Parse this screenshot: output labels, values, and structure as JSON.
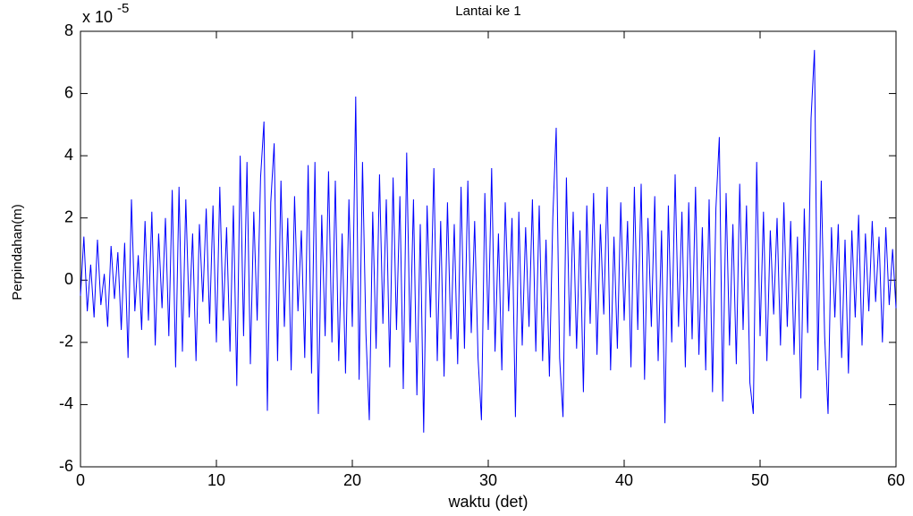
{
  "chart_data": {
    "type": "line",
    "title": "Lantai ke 1",
    "x_label": "waktu (det)",
    "y_label": "Perpindahan(m)",
    "y_multiplier": "x 10",
    "y_exponent": "-5",
    "x": [
      0,
      0.25,
      0.5,
      0.75,
      1,
      1.25,
      1.5,
      1.75,
      2,
      2.25,
      2.5,
      2.75,
      3,
      3.25,
      3.5,
      3.75,
      4,
      4.25,
      4.5,
      4.75,
      5,
      5.25,
      5.5,
      5.75,
      6,
      6.25,
      6.5,
      6.75,
      7,
      7.25,
      7.5,
      7.75,
      8,
      8.25,
      8.5,
      8.75,
      9,
      9.25,
      9.5,
      9.75,
      10,
      10.25,
      10.5,
      10.75,
      11,
      11.25,
      11.5,
      11.75,
      12,
      12.25,
      12.5,
      12.75,
      13,
      13.25,
      13.5,
      13.75,
      14,
      14.25,
      14.5,
      14.75,
      15,
      15.25,
      15.5,
      15.75,
      16,
      16.25,
      16.5,
      16.75,
      17,
      17.25,
      17.5,
      17.75,
      18,
      18.25,
      18.5,
      18.75,
      19,
      19.25,
      19.5,
      19.75,
      20,
      20.25,
      20.5,
      20.75,
      21,
      21.25,
      21.5,
      21.75,
      22,
      22.25,
      22.5,
      22.75,
      23,
      23.25,
      23.5,
      23.75,
      24,
      24.25,
      24.5,
      24.75,
      25,
      25.25,
      25.5,
      25.75,
      26,
      26.25,
      26.5,
      26.75,
      27,
      27.25,
      27.5,
      27.75,
      28,
      28.25,
      28.5,
      28.75,
      29,
      29.25,
      29.5,
      29.75,
      30,
      30.25,
      30.5,
      30.75,
      31,
      31.25,
      31.5,
      31.75,
      32,
      32.25,
      32.5,
      32.75,
      33,
      33.25,
      33.5,
      33.75,
      34,
      34.25,
      34.5,
      34.75,
      35,
      35.25,
      35.5,
      35.75,
      36,
      36.25,
      36.5,
      36.75,
      37,
      37.25,
      37.5,
      37.75,
      38,
      38.25,
      38.5,
      38.75,
      39,
      39.25,
      39.5,
      39.75,
      40,
      40.25,
      40.5,
      40.75,
      41,
      41.25,
      41.5,
      41.75,
      42,
      42.25,
      42.5,
      42.75,
      43,
      43.25,
      43.5,
      43.75,
      44,
      44.25,
      44.5,
      44.75,
      45,
      45.25,
      45.5,
      45.75,
      46,
      46.25,
      46.5,
      46.75,
      47,
      47.25,
      47.5,
      47.75,
      48,
      48.25,
      48.5,
      48.75,
      49,
      49.25,
      49.5,
      49.75,
      50,
      50.25,
      50.5,
      50.75,
      51,
      51.25,
      51.5,
      51.75,
      52,
      52.25,
      52.5,
      52.75,
      53,
      53.25,
      53.5,
      53.75,
      54,
      54.25,
      54.5,
      54.75,
      55,
      55.25,
      55.5,
      55.75,
      56,
      56.25,
      56.5,
      56.75,
      57,
      57.25,
      57.5,
      57.75,
      58,
      58.25,
      58.5,
      58.75,
      59,
      59.25,
      59.5,
      59.75,
      60
    ],
    "series": [
      {
        "color": "#0000ff",
        "values": [
          -0.5,
          1.4,
          -1.0,
          0.5,
          -1.2,
          1.3,
          -0.8,
          0.2,
          -1.5,
          1.1,
          -0.6,
          0.9,
          -1.6,
          1.2,
          -2.5,
          2.6,
          -1.0,
          0.8,
          -1.6,
          1.9,
          -1.3,
          2.2,
          -2.1,
          1.5,
          -0.9,
          2.0,
          -1.8,
          2.9,
          -2.8,
          3.0,
          -2.3,
          2.6,
          -1.2,
          1.5,
          -2.6,
          1.8,
          -0.7,
          2.3,
          -1.4,
          2.4,
          -2.0,
          3.0,
          -1.3,
          1.7,
          -2.3,
          2.4,
          -3.4,
          4.0,
          -1.8,
          3.8,
          -2.7,
          2.2,
          -1.3,
          3.3,
          5.1,
          -4.2,
          2.5,
          4.4,
          -2.6,
          3.2,
          -1.5,
          2.0,
          -2.9,
          2.7,
          -1.0,
          1.6,
          -2.5,
          3.7,
          -3.0,
          3.8,
          -4.3,
          2.1,
          -1.8,
          3.5,
          -2.0,
          3.2,
          -2.6,
          1.5,
          -3.0,
          2.6,
          -1.5,
          5.9,
          -3.2,
          3.8,
          -1.7,
          -4.5,
          2.2,
          -2.2,
          3.4,
          -1.4,
          2.6,
          -2.8,
          3.3,
          -1.6,
          2.7,
          -3.5,
          4.1,
          -2.0,
          2.6,
          -3.7,
          1.8,
          -4.9,
          2.4,
          -1.2,
          3.6,
          -2.6,
          1.9,
          -3.1,
          2.5,
          -1.9,
          1.8,
          -2.7,
          3.0,
          -2.2,
          3.2,
          -1.7,
          1.9,
          -2.5,
          -4.5,
          2.8,
          -1.6,
          3.6,
          -2.3,
          1.5,
          -2.9,
          2.5,
          -1.0,
          2.0,
          -4.4,
          2.2,
          -2.1,
          1.7,
          -1.5,
          2.6,
          -2.3,
          2.4,
          -2.6,
          1.3,
          -3.1,
          2.0,
          4.9,
          -2.5,
          -4.4,
          3.3,
          -1.8,
          2.2,
          -2.2,
          1.6,
          -3.6,
          2.4,
          -1.4,
          2.8,
          -2.4,
          1.8,
          -1.1,
          3.0,
          -2.9,
          1.4,
          -2.2,
          2.5,
          -1.3,
          1.9,
          -2.8,
          3.0,
          -1.6,
          3.1,
          -3.2,
          2.0,
          -1.5,
          2.7,
          -2.6,
          1.6,
          -4.6,
          2.4,
          -2.0,
          3.4,
          -1.5,
          2.2,
          -2.8,
          2.5,
          -1.9,
          3.0,
          -2.4,
          1.7,
          -2.9,
          2.6,
          -3.6,
          2.3,
          4.6,
          -3.9,
          2.8,
          -2.1,
          1.8,
          -2.7,
          3.1,
          -1.6,
          2.4,
          -3.3,
          -4.3,
          3.8,
          -1.8,
          2.2,
          -2.6,
          1.6,
          -1.1,
          2.0,
          -2.1,
          2.5,
          -1.5,
          1.9,
          -2.4,
          1.4,
          -3.8,
          2.3,
          -1.7,
          5.2,
          7.4,
          -2.9,
          3.2,
          -1.8,
          -4.3,
          1.7,
          -1.2,
          1.8,
          -2.5,
          1.3,
          -3.0,
          1.6,
          -1.2,
          2.1,
          -2.1,
          1.5,
          -1.0,
          1.9,
          -0.7,
          1.4,
          -2.0,
          1.7,
          -0.8,
          1.0,
          -0.9
        ]
      }
    ],
    "xlim": [
      0,
      60
    ],
    "xticks": [
      0,
      10,
      20,
      30,
      40,
      50,
      60
    ],
    "ylim": [
      -6,
      8
    ],
    "yticks": [
      -6,
      -4,
      -2,
      0,
      2,
      4,
      6,
      8
    ],
    "grid": false
  }
}
